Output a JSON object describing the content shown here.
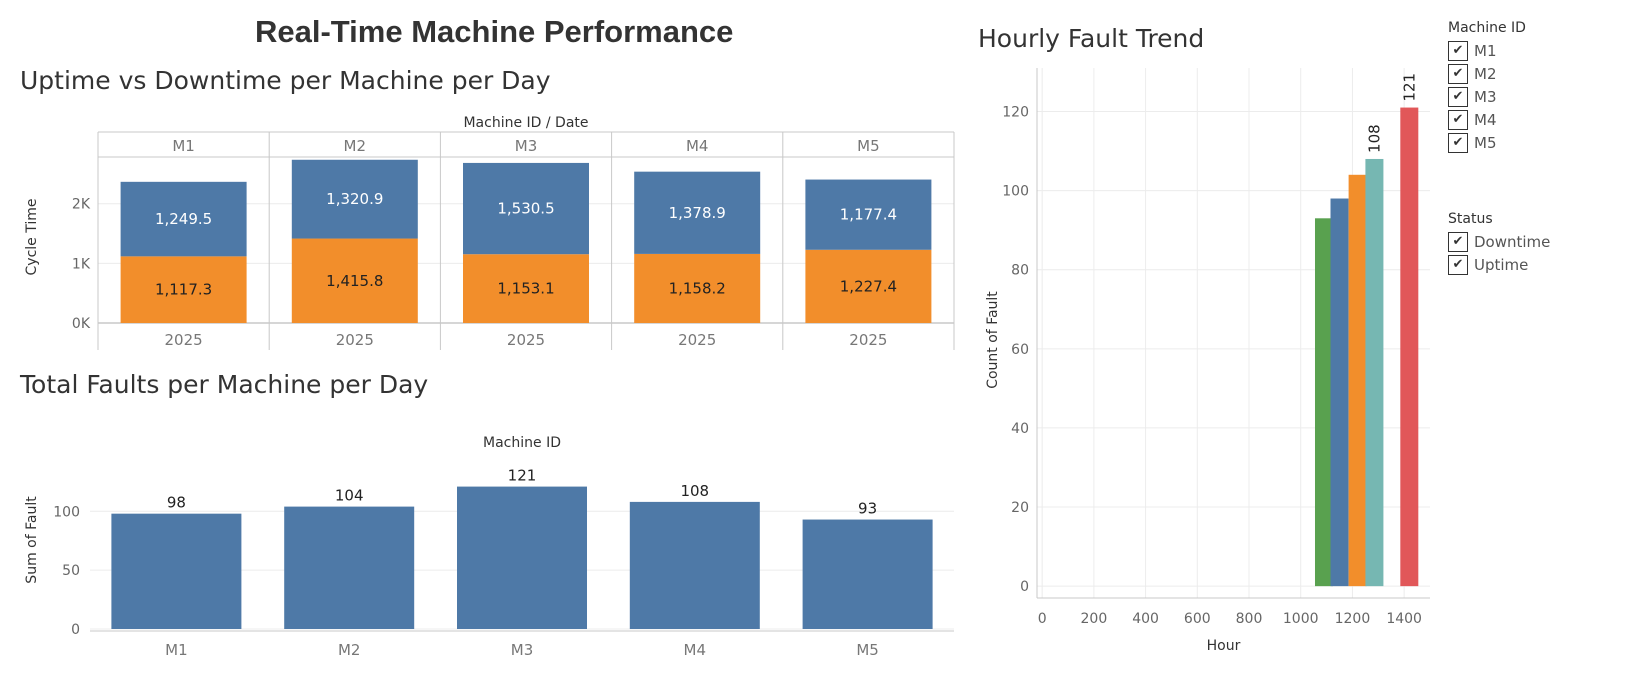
{
  "dashboard": {
    "title": "Real-Time Machine Performance"
  },
  "sections": {
    "uptime_title": "Uptime vs Downtime per Machine per Day",
    "faults_title": "Total Faults per Machine per Day",
    "hourly_title": "Hourly Fault Trend"
  },
  "legend": {
    "machine": {
      "title": "Machine ID",
      "items": [
        {
          "label": "M1",
          "checked": true
        },
        {
          "label": "M2",
          "checked": true
        },
        {
          "label": "M3",
          "checked": true
        },
        {
          "label": "M4",
          "checked": true
        },
        {
          "label": "M5",
          "checked": true
        }
      ]
    },
    "status": {
      "title": "Status",
      "items": [
        {
          "label": "Downtime",
          "checked": true
        },
        {
          "label": "Uptime",
          "checked": true
        }
      ]
    },
    "check_glyph": "✔"
  },
  "colors": {
    "uptime": "#4e79a7",
    "downtime": "#f28e2b",
    "fault_bar": "#4e79a7",
    "grid": "#ececec",
    "border": "#c8c8c8",
    "hourly": [
      "#59a14f",
      "#4e79a7",
      "#f28e2b",
      "#76b7b2",
      "#e15759"
    ]
  },
  "chart_data": [
    {
      "type": "bar",
      "stacked": true,
      "title": "Uptime vs Downtime per Machine per Day",
      "column_header": "Machine ID  /  Date",
      "categories": [
        "M1",
        "M2",
        "M3",
        "M4",
        "M5"
      ],
      "dates": [
        "2025",
        "2025",
        "2025",
        "2025",
        "2025"
      ],
      "ylabel": "Cycle Time",
      "yticks": [
        {
          "value": 0,
          "label": "0K"
        },
        {
          "value": 1000,
          "label": "1K"
        },
        {
          "value": 2000,
          "label": "2K"
        }
      ],
      "ylim": [
        0,
        2850
      ],
      "series": [
        {
          "name": "Downtime",
          "values": [
            1117.3,
            1415.8,
            1153.1,
            1158.2,
            1227.4
          ],
          "labels": [
            "1,117.3",
            "1,415.8",
            "1,153.1",
            "1,158.2",
            "1,227.4"
          ]
        },
        {
          "name": "Uptime",
          "values": [
            1249.5,
            1320.9,
            1530.5,
            1378.9,
            1177.4
          ],
          "labels": [
            "1,249.5",
            "1,320.9",
            "1,530.5",
            "1,378.9",
            "1,177.4"
          ]
        }
      ],
      "grid": true
    },
    {
      "type": "bar",
      "title": "Total Faults per Machine per Day",
      "column_header": "Machine ID",
      "categories": [
        "M1",
        "M2",
        "M3",
        "M4",
        "M5"
      ],
      "values": [
        98,
        104,
        121,
        108,
        93
      ],
      "labels": [
        "98",
        "104",
        "121",
        "108",
        "93"
      ],
      "ylabel": "Sum of Fault",
      "yticks": [
        0,
        50,
        100
      ],
      "ylim": [
        0,
        130
      ],
      "grid": true
    },
    {
      "type": "bar",
      "title": "Hourly Fault Trend",
      "xlabel": "Hour",
      "ylabel": "Count of Fault",
      "xticks": [
        0,
        200,
        400,
        600,
        800,
        1000,
        1200,
        1400
      ],
      "yticks": [
        0,
        20,
        40,
        60,
        80,
        100,
        120
      ],
      "xlim": [
        -20,
        1500
      ],
      "ylim": [
        -3,
        131
      ],
      "bars": [
        {
          "machine": "M5",
          "hour": 1090,
          "value": 93,
          "label": ""
        },
        {
          "machine": "M1",
          "hour": 1150,
          "value": 98,
          "label": ""
        },
        {
          "machine": "M2",
          "hour": 1220,
          "value": 104,
          "label": ""
        },
        {
          "machine": "M4",
          "hour": 1285,
          "value": 108,
          "label": "108"
        },
        {
          "machine": "M3",
          "hour": 1420,
          "value": 121,
          "label": "121"
        }
      ],
      "grid": true
    }
  ]
}
